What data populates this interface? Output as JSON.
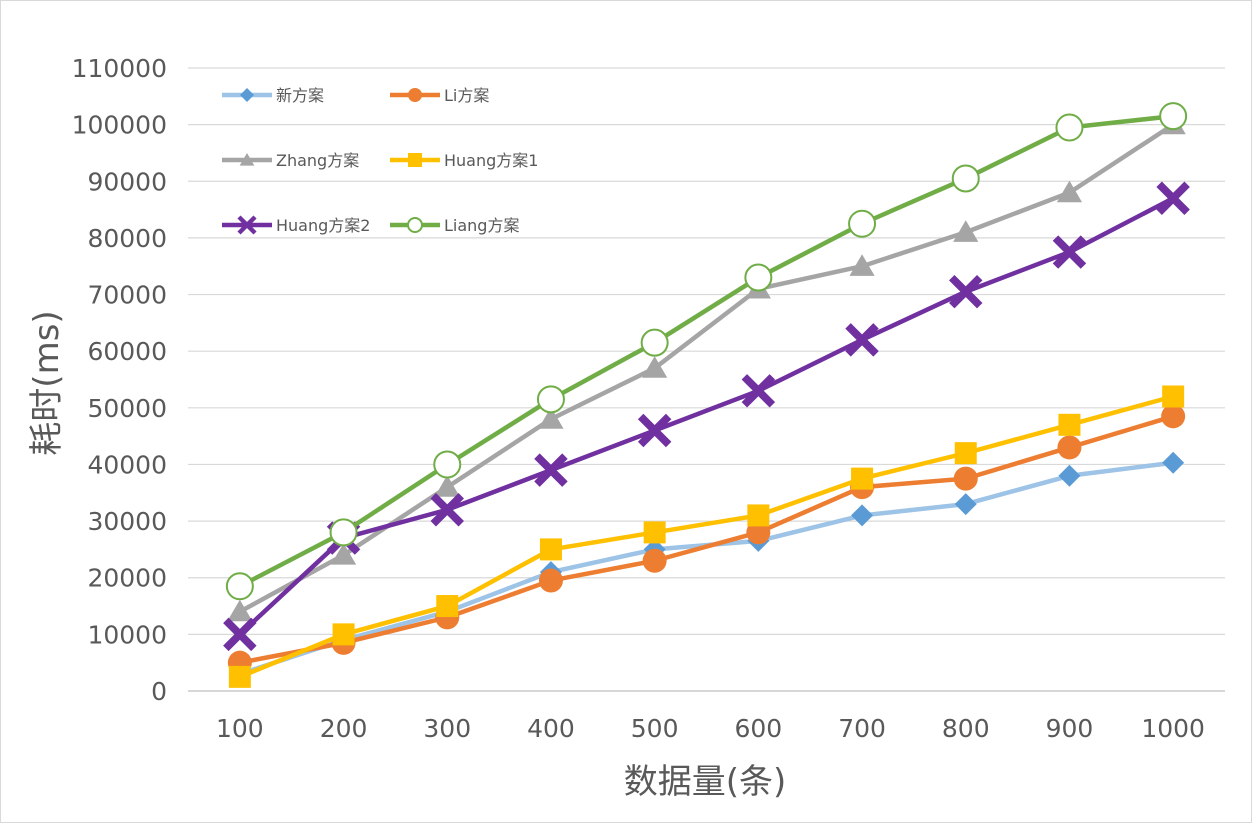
{
  "chart_data": {
    "type": "line",
    "title": "",
    "xlabel": "数据量(条)",
    "ylabel": "耗时(ms)",
    "categories": [
      "100",
      "200",
      "300",
      "400",
      "500",
      "600",
      "700",
      "800",
      "900",
      "1000"
    ],
    "ylim": [
      0,
      110000
    ],
    "yticks": [
      "0",
      "10000",
      "20000",
      "30000",
      "40000",
      "50000",
      "60000",
      "70000",
      "80000",
      "90000",
      "100000",
      "110000"
    ],
    "grid": true,
    "legend_position": "top-left",
    "series": [
      {
        "name": "新方案",
        "color": "#5b9bd5",
        "line_color": "#9dc3e6",
        "marker": "diamond",
        "values": [
          3000,
          9000,
          14000,
          21000,
          25000,
          26500,
          31000,
          33000,
          38000,
          40300
        ]
      },
      {
        "name": "Li方案",
        "color": "#ed7d31",
        "line_color": "#ed7d31",
        "marker": "circle",
        "values": [
          5000,
          8500,
          13000,
          19500,
          23000,
          28000,
          36000,
          37500,
          43000,
          48500
        ]
      },
      {
        "name": "Zhang方案",
        "color": "#a5a5a5",
        "line_color": "#a5a5a5",
        "marker": "triangle",
        "values": [
          14000,
          24000,
          36000,
          48000,
          57000,
          71000,
          75000,
          81000,
          88000,
          100000
        ]
      },
      {
        "name": "Huang方案1",
        "color": "#ffc000",
        "line_color": "#ffc000",
        "marker": "square",
        "values": [
          2500,
          10000,
          15000,
          25000,
          28000,
          31000,
          37500,
          42000,
          47000,
          52000
        ]
      },
      {
        "name": "Huang方案2",
        "color": "#7030a0",
        "line_color": "#7030a0",
        "marker": "x",
        "values": [
          10000,
          27000,
          32000,
          39000,
          46000,
          53000,
          62000,
          70500,
          77500,
          87000
        ]
      },
      {
        "name": "Liang方案",
        "color": "#70ad47",
        "line_color": "#70ad47",
        "marker": "open-circle",
        "values": [
          18500,
          28000,
          40000,
          51500,
          61500,
          73000,
          82500,
          90500,
          99500,
          101500
        ]
      }
    ]
  }
}
